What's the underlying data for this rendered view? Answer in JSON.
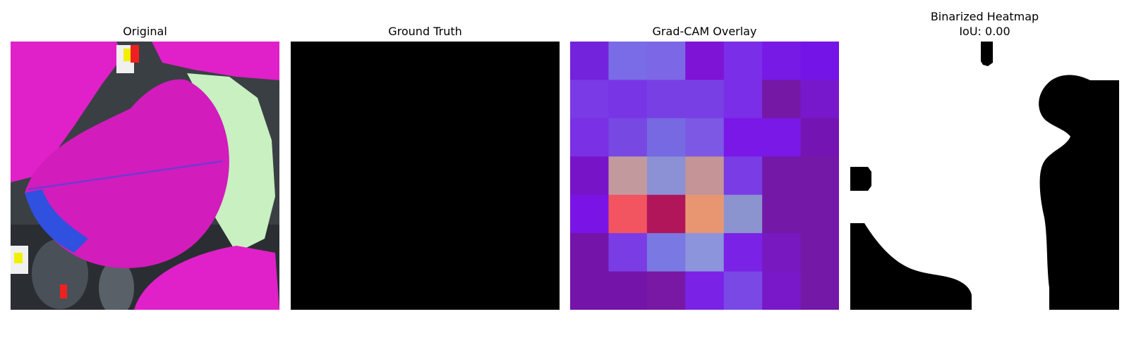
{
  "panels": [
    {
      "title": "Original"
    },
    {
      "title": "Ground Truth"
    },
    {
      "title": "Grad-CAM Overlay"
    },
    {
      "title": "Binarized Heatmap",
      "subtitle": "IoU: 0.00"
    }
  ],
  "gradcam_grid": [
    [
      "#7323dc",
      "#7a6ce6",
      "#7c68e6",
      "#7d14d6",
      "#7a2ee8",
      "#771ae6",
      "#7414e6"
    ],
    [
      "#7a3ae6",
      "#7835e6",
      "#7840e4",
      "#7840e4",
      "#7a2ee8",
      "#7518a5",
      "#7818cd"
    ],
    [
      "#7a30e4",
      "#7748e2",
      "#7669e2",
      "#7c58e4",
      "#7a18e8",
      "#7a18e8",
      "#7414b2"
    ],
    [
      "#7814c8",
      "#c29a9e",
      "#8c90d4",
      "#c49496",
      "#7a3ce4",
      "#7418a8",
      "#7418a8"
    ],
    [
      "#7a14e6",
      "#f25460",
      "#b01659",
      "#e89672",
      "#8c94d0",
      "#7418a8",
      "#7418a8"
    ],
    [
      "#7414a8",
      "#7a3ce4",
      "#7a78e2",
      "#8c94dc",
      "#7a22e6",
      "#7818c0",
      "#7418a8"
    ],
    [
      "#7414a8",
      "#7414a8",
      "#7818a5",
      "#7a22e6",
      "#7a48e4",
      "#7818c8",
      "#7418a8"
    ]
  ]
}
